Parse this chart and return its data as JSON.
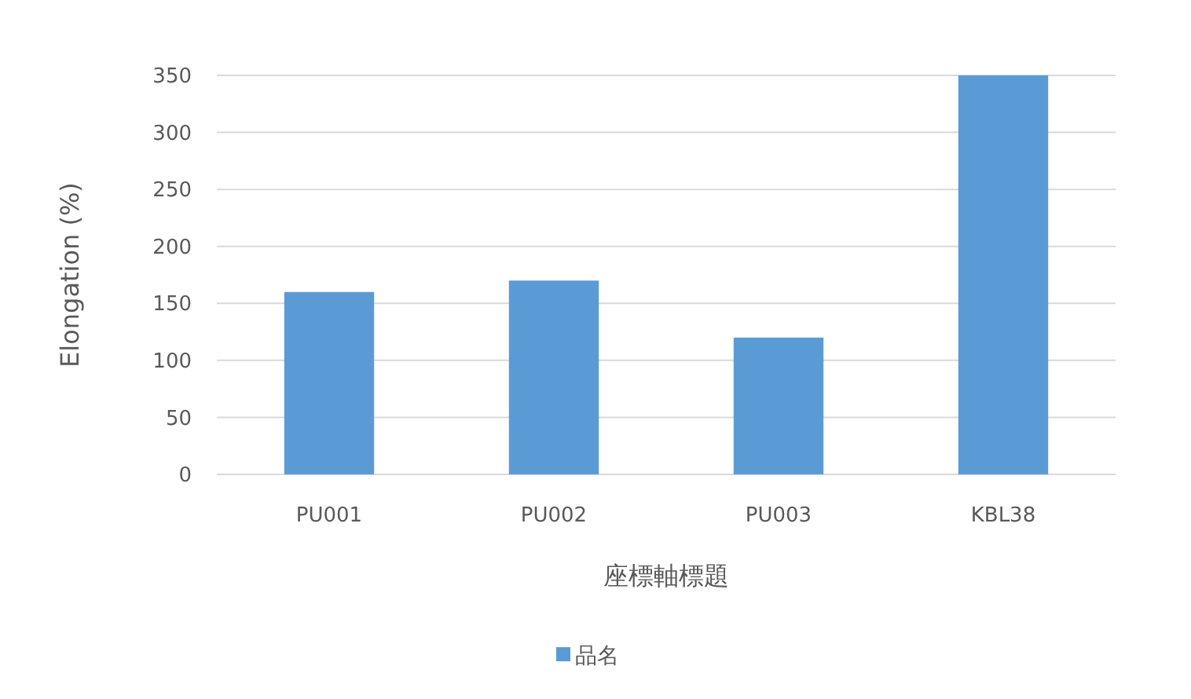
{
  "chart_data": {
    "type": "bar",
    "xlabel": "座標軸標題",
    "ylabel": "Elongation (%)",
    "categories": [
      "PU001",
      "PU002",
      "PU003",
      "KBL38"
    ],
    "series": [
      {
        "name": "品名",
        "color": "#5b9bd5",
        "values": [
          160,
          170,
          120,
          350
        ]
      }
    ],
    "ylim": [
      0,
      350
    ],
    "yticks": [
      0,
      50,
      100,
      150,
      200,
      250,
      300,
      350
    ],
    "grid": "y",
    "legend": "bottom"
  }
}
